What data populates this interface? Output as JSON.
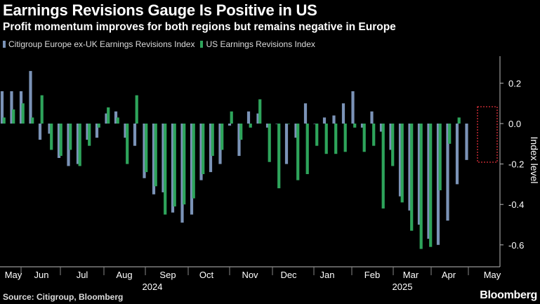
{
  "header": {
    "title": "Earnings Revisions Gauge Is Positive in US",
    "subtitle": "Profit momentum improves for both regions but remains negative in Europe"
  },
  "footer": {
    "source": "Source: Citigroup, Bloomberg",
    "brand": "Bloomberg"
  },
  "colors": {
    "europe": "#7b93b7",
    "us": "#2ea45b",
    "background": "#000000",
    "highlight": "#e0303a"
  },
  "chart_data": {
    "type": "bar",
    "title": "Earnings Revisions Gauge Is Positive in US",
    "subtitle": "Profit momentum improves for both regions but remains negative in Europe",
    "xlabel": "",
    "ylabel": "Index level",
    "ylim": [
      -0.7,
      0.33
    ],
    "yticks": [
      "0.2",
      "0.0",
      "-0.2",
      "-0.4",
      "-0.6"
    ],
    "ytick_values": [
      0.2,
      0.0,
      -0.2,
      -0.4,
      -0.6
    ],
    "grid": false,
    "legend_position": "top-left",
    "legend": [
      "Citigroup Europe ex-UK Earnings Revisions Index",
      "US Earnings Revisions Index"
    ],
    "month_labels": [
      "May",
      "Jun",
      "Jul",
      "Aug",
      "Sep",
      "Oct",
      "Nov",
      "Dec",
      "Jan",
      "Feb",
      "Mar",
      "Apr",
      "May"
    ],
    "year_labels": [
      "2024",
      "2025"
    ],
    "period": "weekly, May 2024 - May 2025",
    "series": [
      {
        "name": "Citigroup Europe ex-UK Earnings Revisions Index",
        "values": [
          0.16,
          0.16,
          0.16,
          0.26,
          -0.08,
          -0.05,
          -0.17,
          -0.21,
          -0.2,
          -0.08,
          -0.07,
          0.05,
          0.06,
          -0.07,
          -0.11,
          -0.27,
          -0.35,
          -0.34,
          -0.44,
          -0.49,
          -0.45,
          -0.28,
          -0.24,
          -0.2,
          -0.01,
          -0.16,
          0.06,
          0.05,
          -0.02,
          0.0,
          -0.2,
          -0.07,
          0.1,
          0.0,
          0.03,
          0.04,
          0.1,
          0.16,
          -0.02,
          0.06,
          -0.04,
          -0.13,
          -0.36,
          -0.43,
          -0.5,
          -0.57,
          -0.6,
          -0.48,
          -0.3,
          -0.18
        ]
      },
      {
        "name": "US Earnings Revisions Index",
        "values": [
          0.03,
          0.07,
          0.1,
          0.03,
          0.14,
          -0.13,
          -0.16,
          -0.13,
          -0.21,
          -0.11,
          -0.02,
          0.08,
          0.03,
          -0.2,
          0.14,
          -0.24,
          -0.31,
          -0.45,
          -0.41,
          -0.4,
          -0.37,
          -0.25,
          -0.16,
          -0.13,
          0.06,
          -0.08,
          -0.02,
          0.12,
          -0.19,
          -0.32,
          0.0,
          -0.28,
          -0.25,
          -0.11,
          -0.15,
          -0.15,
          -0.14,
          -0.02,
          -0.14,
          -0.11,
          -0.42,
          -0.21,
          -0.39,
          -0.53,
          -0.62,
          -0.61,
          -0.33,
          -0.1,
          0.03
        ]
      }
    ]
  }
}
